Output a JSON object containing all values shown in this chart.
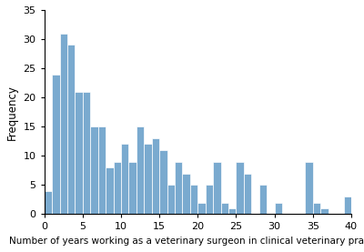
{
  "bar_heights": [
    4,
    24,
    31,
    29,
    21,
    21,
    15,
    15,
    8,
    9,
    12,
    9,
    15,
    12,
    13,
    11,
    5,
    9,
    7,
    5,
    2,
    5,
    9,
    2,
    1,
    9,
    7,
    0,
    5,
    0,
    2,
    0,
    0,
    0,
    9,
    2,
    1,
    0,
    0,
    3
  ],
  "bar_color": "#7aaacf",
  "bar_edgecolor": "#ffffff",
  "xlabel": "Number of years working as a veterinary surgeon in clinical veterinary practice",
  "ylabel": "Frequency",
  "xlim": [
    0,
    40
  ],
  "ylim": [
    0,
    35
  ],
  "yticks": [
    0,
    5,
    10,
    15,
    20,
    25,
    30,
    35
  ],
  "xticks": [
    0,
    5,
    10,
    15,
    20,
    25,
    30,
    35,
    40
  ],
  "xlabel_fontsize": 7.5,
  "ylabel_fontsize": 8.5,
  "tick_fontsize": 8,
  "background_color": "#ffffff",
  "figsize": [
    4.0,
    2.77
  ],
  "dpi": 100
}
